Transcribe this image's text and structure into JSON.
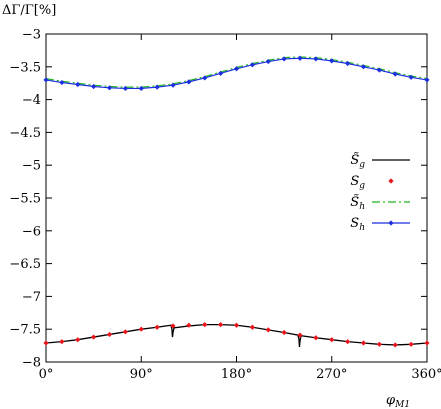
{
  "chart_data": {
    "type": "line",
    "ylabel": "ΔΓ/Γ[%]",
    "xlabel": "φ_M1",
    "xlabel_main": "φ",
    "xlabel_sub": "M1",
    "xlim": [
      0,
      360
    ],
    "ylim": [
      -8,
      -3
    ],
    "x_ticks": [
      0,
      90,
      180,
      270,
      360
    ],
    "x_tick_labels": [
      "0°",
      "90°",
      "180°",
      "270°",
      "360°"
    ],
    "y_ticks": [
      -3,
      -3.5,
      -4,
      -4.5,
      -5,
      -5.5,
      -6,
      -6.5,
      -7,
      -7.5,
      -8
    ],
    "y_tick_labels": [
      "−3",
      "−3.5",
      "−4",
      "−4.5",
      "−5",
      "−5.5",
      "−6",
      "−6.5",
      "−7",
      "−7.5",
      "−8"
    ],
    "grid": false,
    "legend_position": "right",
    "series": [
      {
        "name": "S̃_g",
        "legend_main": "S̃",
        "legend_sub": "g",
        "style": "solid",
        "color": "#000000",
        "x": [
          0,
          15,
          30,
          45,
          60,
          75,
          90,
          105,
          118,
          119,
          119.5,
          120,
          121,
          135,
          150,
          165,
          180,
          195,
          210,
          225,
          238,
          239,
          239.5,
          240,
          241,
          255,
          270,
          285,
          300,
          315,
          330,
          345,
          360
        ],
        "y": [
          -7.71,
          -7.69,
          -7.66,
          -7.62,
          -7.58,
          -7.54,
          -7.5,
          -7.47,
          -7.44,
          -7.5,
          -7.62,
          -7.55,
          -7.48,
          -7.45,
          -7.43,
          -7.43,
          -7.44,
          -7.47,
          -7.51,
          -7.55,
          -7.59,
          -7.65,
          -7.77,
          -7.68,
          -7.6,
          -7.63,
          -7.66,
          -7.69,
          -7.71,
          -7.73,
          -7.74,
          -7.73,
          -7.71
        ]
      },
      {
        "name": "S_g",
        "legend_main": "S",
        "legend_sub": "g",
        "style": "markers",
        "color": "#e8141b",
        "x": [
          0,
          15,
          30,
          45,
          60,
          75,
          90,
          105,
          120,
          135,
          150,
          165,
          180,
          195,
          210,
          225,
          240,
          255,
          270,
          285,
          300,
          315,
          330,
          345,
          360
        ],
        "y": [
          -7.71,
          -7.69,
          -7.66,
          -7.62,
          -7.58,
          -7.54,
          -7.5,
          -7.47,
          -7.45,
          -7.44,
          -7.43,
          -7.43,
          -7.44,
          -7.47,
          -7.51,
          -7.55,
          -7.59,
          -7.63,
          -7.66,
          -7.69,
          -7.71,
          -7.73,
          -7.74,
          -7.73,
          -7.71
        ]
      },
      {
        "name": "S̃_h",
        "legend_main": "S̃",
        "legend_sub": "h",
        "style": "dash-dot",
        "color": "#1eb51e",
        "x": [
          0,
          15,
          30,
          45,
          60,
          75,
          90,
          105,
          120,
          135,
          150,
          165,
          180,
          195,
          210,
          225,
          240,
          255,
          270,
          285,
          300,
          315,
          330,
          345,
          360
        ],
        "y": [
          -3.68,
          -3.72,
          -3.75,
          -3.78,
          -3.8,
          -3.81,
          -3.81,
          -3.79,
          -3.76,
          -3.71,
          -3.65,
          -3.58,
          -3.51,
          -3.45,
          -3.4,
          -3.36,
          -3.35,
          -3.36,
          -3.39,
          -3.43,
          -3.48,
          -3.53,
          -3.59,
          -3.64,
          -3.68
        ]
      },
      {
        "name": "S_h",
        "legend_main": "S",
        "legend_sub": "h",
        "style": "line+markers",
        "color": "#1c2fe0",
        "x": [
          0,
          15,
          30,
          45,
          60,
          75,
          90,
          105,
          120,
          135,
          150,
          165,
          180,
          195,
          210,
          225,
          240,
          255,
          270,
          285,
          300,
          315,
          330,
          345,
          360
        ],
        "y": [
          -3.7,
          -3.74,
          -3.77,
          -3.8,
          -3.82,
          -3.83,
          -3.83,
          -3.81,
          -3.78,
          -3.73,
          -3.67,
          -3.6,
          -3.53,
          -3.47,
          -3.42,
          -3.38,
          -3.37,
          -3.38,
          -3.41,
          -3.45,
          -3.5,
          -3.55,
          -3.61,
          -3.66,
          -3.7
        ]
      }
    ]
  }
}
